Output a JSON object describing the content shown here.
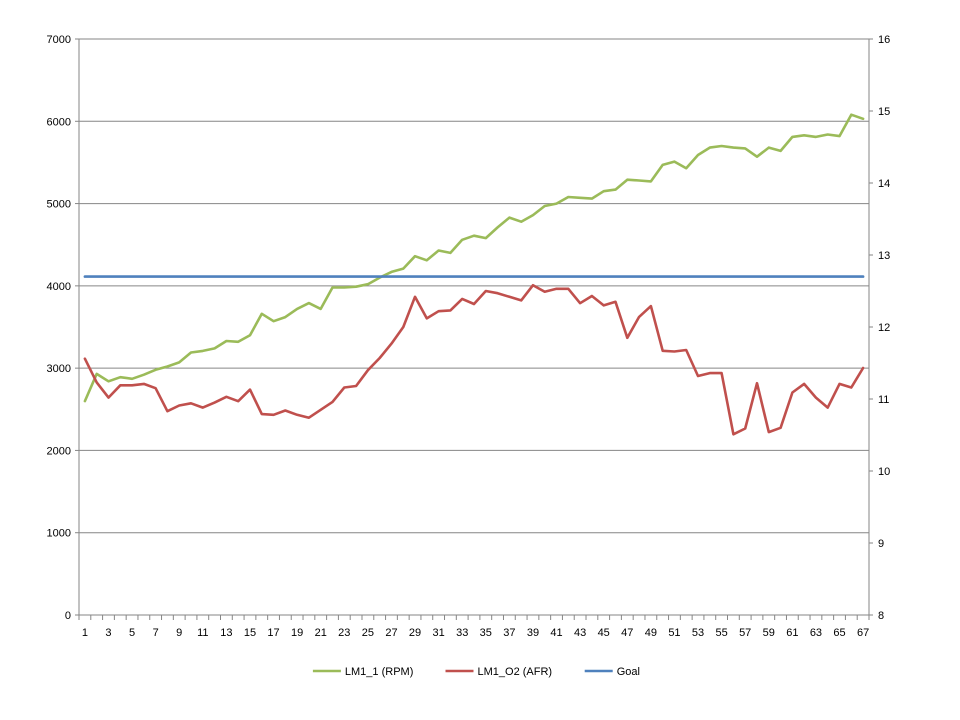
{
  "chart_data": {
    "type": "line",
    "title": "",
    "xlabel": "",
    "ylabel": "",
    "y2label": "",
    "x": [
      1,
      2,
      3,
      4,
      5,
      6,
      7,
      8,
      9,
      10,
      11,
      12,
      13,
      14,
      15,
      16,
      17,
      18,
      19,
      20,
      21,
      22,
      23,
      24,
      25,
      26,
      27,
      28,
      29,
      30,
      31,
      32,
      33,
      34,
      35,
      36,
      37,
      38,
      39,
      40,
      41,
      42,
      43,
      44,
      45,
      46,
      47,
      48,
      49,
      50,
      51,
      52,
      53,
      54,
      55,
      56,
      57,
      58,
      59,
      60,
      61,
      62,
      63,
      64,
      65,
      66,
      67
    ],
    "x_tick_labels": [
      "1",
      "3",
      "5",
      "7",
      "9",
      "11",
      "13",
      "15",
      "17",
      "19",
      "21",
      "23",
      "25",
      "27",
      "29",
      "31",
      "33",
      "35",
      "37",
      "39",
      "41",
      "43",
      "45",
      "47",
      "49",
      "51",
      "53",
      "55",
      "57",
      "59",
      "61",
      "63",
      "65",
      "67"
    ],
    "ylim": [
      0,
      7000
    ],
    "y_ticks": [
      "0",
      "1000",
      "2000",
      "3000",
      "4000",
      "5000",
      "6000",
      "7000"
    ],
    "y2lim": [
      8,
      16
    ],
    "y2_ticks": [
      "8",
      "9",
      "10",
      "11",
      "12",
      "13",
      "14",
      "15",
      "16"
    ],
    "grid": true,
    "legend_position": "bottom",
    "series": [
      {
        "name": "LM1_1 (RPM)",
        "axis": "left",
        "color": "#9bbb59",
        "values": [
          2600,
          2930,
          2840,
          2890,
          2870,
          2920,
          2980,
          3020,
          3070,
          3190,
          3210,
          3240,
          3330,
          3320,
          3400,
          3660,
          3570,
          3620,
          3720,
          3790,
          3720,
          3980,
          3980,
          3990,
          4020,
          4100,
          4170,
          4210,
          4360,
          4310,
          4430,
          4400,
          4560,
          4610,
          4580,
          4710,
          4830,
          4780,
          4860,
          4970,
          5000,
          5080,
          5070,
          5060,
          5150,
          5170,
          5290,
          5280,
          5270,
          5470,
          5510,
          5430,
          5590,
          5680,
          5700,
          5680,
          5670,
          5570,
          5680,
          5640,
          5810,
          5830,
          5810,
          5840,
          5820,
          6080,
          6030
        ]
      },
      {
        "name": "LM1_O2 (AFR)",
        "axis": "right",
        "color": "#c0504d",
        "values": [
          11.56,
          11.23,
          11.02,
          11.19,
          11.19,
          11.21,
          11.15,
          10.83,
          10.91,
          10.94,
          10.88,
          10.95,
          11.03,
          10.97,
          11.13,
          10.79,
          10.78,
          10.84,
          10.78,
          10.74,
          10.85,
          10.96,
          11.16,
          11.18,
          11.4,
          11.57,
          11.77,
          12.0,
          12.42,
          12.12,
          12.22,
          12.23,
          12.39,
          12.32,
          12.5,
          12.47,
          12.42,
          12.37,
          12.58,
          12.49,
          12.53,
          12.53,
          12.33,
          12.43,
          12.3,
          12.35,
          11.85,
          12.14,
          12.29,
          11.67,
          11.66,
          11.68,
          11.32,
          11.36,
          11.36,
          10.51,
          10.59,
          11.22,
          10.54,
          10.6,
          11.09,
          11.21,
          11.02,
          10.88,
          11.21,
          11.16,
          11.43
        ]
      },
      {
        "name": "Goal",
        "axis": "right",
        "color": "#4f81bd",
        "values": [
          12.7,
          12.7,
          12.7,
          12.7,
          12.7,
          12.7,
          12.7,
          12.7,
          12.7,
          12.7,
          12.7,
          12.7,
          12.7,
          12.7,
          12.7,
          12.7,
          12.7,
          12.7,
          12.7,
          12.7,
          12.7,
          12.7,
          12.7,
          12.7,
          12.7,
          12.7,
          12.7,
          12.7,
          12.7,
          12.7,
          12.7,
          12.7,
          12.7,
          12.7,
          12.7,
          12.7,
          12.7,
          12.7,
          12.7,
          12.7,
          12.7,
          12.7,
          12.7,
          12.7,
          12.7,
          12.7,
          12.7,
          12.7,
          12.7,
          12.7,
          12.7,
          12.7,
          12.7,
          12.7,
          12.7,
          12.7,
          12.7,
          12.7,
          12.7,
          12.7,
          12.7,
          12.7,
          12.7,
          12.7,
          12.7,
          12.7,
          12.7
        ]
      }
    ]
  }
}
